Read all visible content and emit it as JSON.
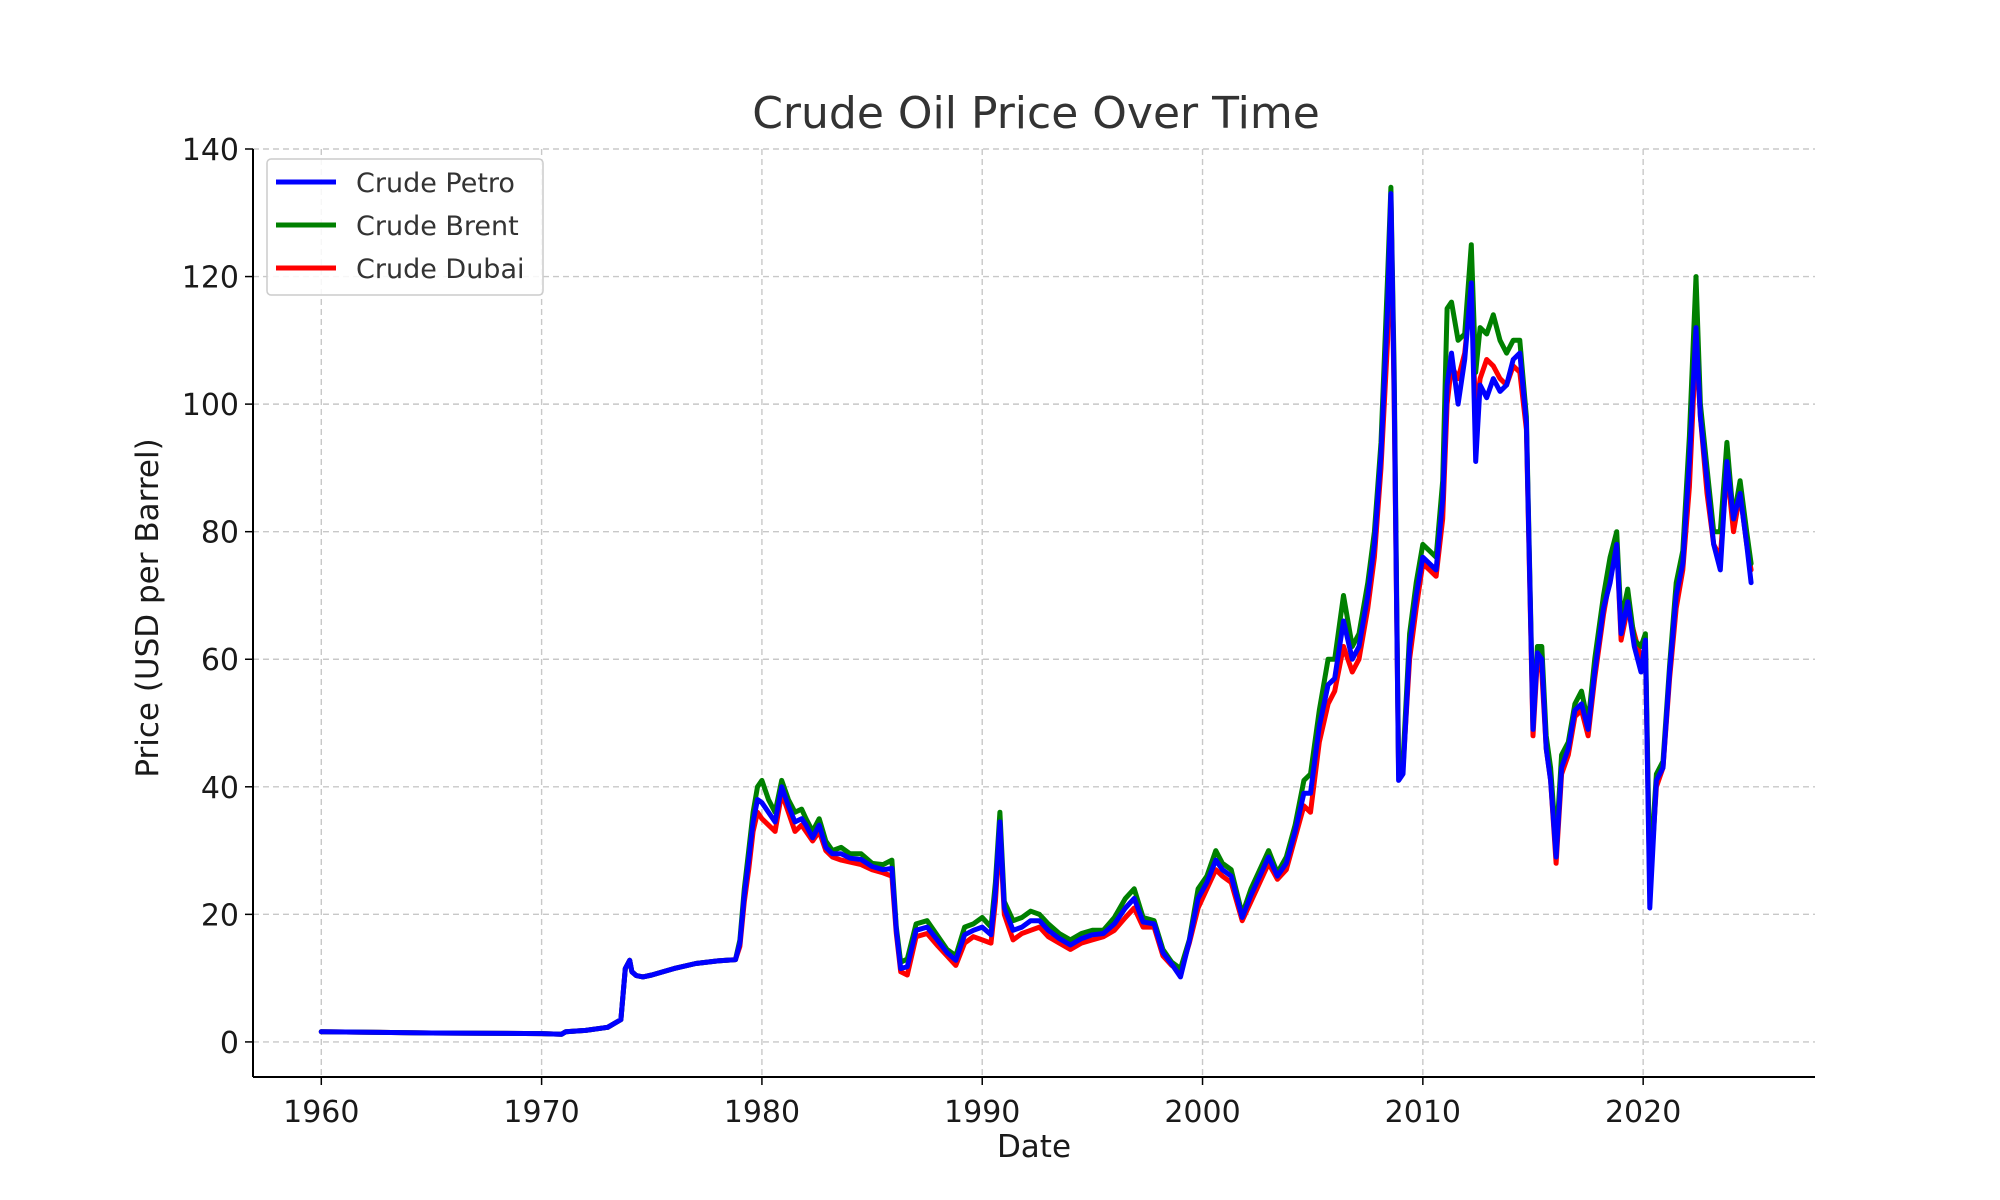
{
  "chart_data": {
    "type": "line",
    "title": "Crude Oil Price Over Time",
    "xlabel": "Date",
    "ylabel": "Price (USD per Barrel)",
    "xlim": [
      1956.9,
      2027.8
    ],
    "ylim": [
      -5.5,
      140
    ],
    "x_ticks": [
      1960,
      1970,
      1980,
      1990,
      2000,
      2010,
      2020
    ],
    "y_ticks": [
      0,
      20,
      40,
      60,
      80,
      100,
      120,
      140
    ],
    "grid": true,
    "legend_position": "top-left",
    "series": [
      {
        "name": "Crude Dubai",
        "color": "#ff0000",
        "x": [
          1960.0,
          1965.0,
          1970.0,
          1970.9,
          1971.1,
          1972.0,
          1973.0,
          1973.6,
          1973.8,
          1974.0,
          1974.1,
          1974.3,
          1974.6,
          1975.0,
          1976.0,
          1977.0,
          1978.0,
          1978.8,
          1979.0,
          1979.2,
          1979.4,
          1979.6,
          1979.8,
          1980.0,
          1980.3,
          1980.6,
          1980.9,
          1981.2,
          1981.5,
          1981.8,
          1982.0,
          1982.3,
          1982.6,
          1982.9,
          1983.2,
          1983.6,
          1984.0,
          1984.5,
          1985.0,
          1985.5,
          1985.9,
          1986.1,
          1986.3,
          1986.6,
          1987.0,
          1987.5,
          1988.0,
          1988.4,
          1988.8,
          1989.2,
          1989.6,
          1990.0,
          1990.4,
          1990.6,
          1990.8,
          1991.0,
          1991.4,
          1991.8,
          1992.2,
          1992.6,
          1993.0,
          1993.5,
          1994.0,
          1994.5,
          1995.0,
          1995.5,
          1996.0,
          1996.5,
          1996.9,
          1997.3,
          1997.8,
          1998.2,
          1998.6,
          1999.0,
          1999.4,
          1999.8,
          2000.2,
          2000.6,
          2000.9,
          2001.3,
          2001.8,
          2002.2,
          2002.6,
          2003.0,
          2003.4,
          2003.8,
          2004.2,
          2004.6,
          2004.9,
          2005.3,
          2005.7,
          2006.0,
          2006.4,
          2006.8,
          2007.1,
          2007.5,
          2007.8,
          2008.1,
          2008.4,
          2008.55,
          2008.7,
          2008.9,
          2009.1,
          2009.4,
          2009.7,
          2010.0,
          2010.3,
          2010.6,
          2010.9,
          2011.1,
          2011.3,
          2011.6,
          2011.9,
          2012.2,
          2012.4,
          2012.6,
          2012.9,
          2013.2,
          2013.5,
          2013.8,
          2014.1,
          2014.4,
          2014.7,
          2015.0,
          2015.2,
          2015.4,
          2015.6,
          2015.8,
          2016.05,
          2016.3,
          2016.6,
          2016.9,
          2017.2,
          2017.5,
          2017.8,
          2018.2,
          2018.5,
          2018.8,
          2019.0,
          2019.3,
          2019.6,
          2019.9,
          2020.1,
          2020.3,
          2020.6,
          2020.9,
          2021.2,
          2021.5,
          2021.8,
          2022.1,
          2022.4,
          2022.6,
          2022.9,
          2023.2,
          2023.5,
          2023.8,
          2024.1,
          2024.4,
          2024.7,
          2024.9
        ],
        "y": [
          1.6,
          1.4,
          1.3,
          1.2,
          1.6,
          1.8,
          2.3,
          3.5,
          11.5,
          12.8,
          11.0,
          10.4,
          10.2,
          10.5,
          11.5,
          12.3,
          12.7,
          12.9,
          15.0,
          22.0,
          27.0,
          33.0,
          36.0,
          35.0,
          34.0,
          33.0,
          39.0,
          36.0,
          33.0,
          34.0,
          33.0,
          31.5,
          33.0,
          30.0,
          29.0,
          28.5,
          28.2,
          27.8,
          27.0,
          26.5,
          26.0,
          17.0,
          11.0,
          10.5,
          16.5,
          17.0,
          15.0,
          13.5,
          12.0,
          15.5,
          16.5,
          16.0,
          15.5,
          22.0,
          33.0,
          20.0,
          16.0,
          17.0,
          17.5,
          18.0,
          16.5,
          15.5,
          14.5,
          15.5,
          16.0,
          16.5,
          17.5,
          19.5,
          21.0,
          18.0,
          18.0,
          13.5,
          12.0,
          11.0,
          15.5,
          21.0,
          24.0,
          27.0,
          26.0,
          25.0,
          19.0,
          22.0,
          25.0,
          28.0,
          25.5,
          27.0,
          32.0,
          37.0,
          36.0,
          47.0,
          53.0,
          55.0,
          62.0,
          58.0,
          60.0,
          68.0,
          76.0,
          90.0,
          110.0,
          132.0,
          100.0,
          42.0,
          43.0,
          60.0,
          68.0,
          75.0,
          74.0,
          73.0,
          82.0,
          100.0,
          106.0,
          104.0,
          108.0,
          118.0,
          98.0,
          104.0,
          107.0,
          106.0,
          104.0,
          103.0,
          106.0,
          105.0,
          96.0,
          48.0,
          60.0,
          58.0,
          46.0,
          41.0,
          28.0,
          42.0,
          45.0,
          51.0,
          52.0,
          48.0,
          57.0,
          67.0,
          73.0,
          78.0,
          63.0,
          68.0,
          64.0,
          60.0,
          62.0,
          24.0,
          40.0,
          43.0,
          57.0,
          68.0,
          74.0,
          87.0,
          110.0,
          98.0,
          86.0,
          78.0,
          76.0,
          90.0,
          80.0,
          86.0,
          78.0,
          74.0
        ]
      },
      {
        "name": "Crude Brent",
        "color": "#008000",
        "x": [
          1960.0,
          1965.0,
          1970.0,
          1970.9,
          1971.1,
          1972.0,
          1973.0,
          1973.6,
          1973.8,
          1974.0,
          1974.1,
          1974.3,
          1974.6,
          1975.0,
          1976.0,
          1977.0,
          1978.0,
          1978.8,
          1979.0,
          1979.2,
          1979.4,
          1979.6,
          1979.8,
          1980.0,
          1980.3,
          1980.6,
          1980.9,
          1981.2,
          1981.5,
          1981.8,
          1982.0,
          1982.3,
          1982.6,
          1982.9,
          1983.2,
          1983.6,
          1984.0,
          1984.5,
          1985.0,
          1985.5,
          1985.9,
          1986.1,
          1986.3,
          1986.6,
          1987.0,
          1987.5,
          1988.0,
          1988.4,
          1988.8,
          1989.2,
          1989.6,
          1990.0,
          1990.4,
          1990.6,
          1990.8,
          1991.0,
          1991.4,
          1991.8,
          1992.2,
          1992.6,
          1993.0,
          1993.5,
          1994.0,
          1994.5,
          1995.0,
          1995.5,
          1996.0,
          1996.5,
          1996.9,
          1997.3,
          1997.8,
          1998.2,
          1998.6,
          1999.0,
          1999.4,
          1999.8,
          2000.2,
          2000.6,
          2000.9,
          2001.3,
          2001.8,
          2002.2,
          2002.6,
          2003.0,
          2003.4,
          2003.8,
          2004.2,
          2004.6,
          2004.9,
          2005.3,
          2005.7,
          2006.0,
          2006.4,
          2006.8,
          2007.1,
          2007.5,
          2007.8,
          2008.1,
          2008.4,
          2008.55,
          2008.7,
          2008.9,
          2009.1,
          2009.4,
          2009.7,
          2010.0,
          2010.3,
          2010.6,
          2010.9,
          2011.1,
          2011.3,
          2011.6,
          2011.9,
          2012.2,
          2012.4,
          2012.6,
          2012.9,
          2013.2,
          2013.5,
          2013.8,
          2014.1,
          2014.4,
          2014.7,
          2015.0,
          2015.2,
          2015.4,
          2015.6,
          2015.8,
          2016.05,
          2016.3,
          2016.6,
          2016.9,
          2017.2,
          2017.5,
          2017.8,
          2018.2,
          2018.5,
          2018.8,
          2019.0,
          2019.3,
          2019.6,
          2019.9,
          2020.1,
          2020.3,
          2020.6,
          2020.9,
          2021.2,
          2021.5,
          2021.8,
          2022.1,
          2022.4,
          2022.6,
          2022.9,
          2023.2,
          2023.5,
          2023.8,
          2024.1,
          2024.4,
          2024.7,
          2024.9
        ],
        "y": [
          1.6,
          1.4,
          1.3,
          1.2,
          1.6,
          1.8,
          2.3,
          3.5,
          11.5,
          12.8,
          11.0,
          10.4,
          10.2,
          10.5,
          11.5,
          12.3,
          12.7,
          12.9,
          16.0,
          24.0,
          30.0,
          36.0,
          40.0,
          41.0,
          38.0,
          36.0,
          41.0,
          38.0,
          36.0,
          36.5,
          35.0,
          33.0,
          35.0,
          31.5,
          30.0,
          30.5,
          29.5,
          29.5,
          28.0,
          27.8,
          28.5,
          18.0,
          12.5,
          13.0,
          18.5,
          19.0,
          16.5,
          14.5,
          13.5,
          18.0,
          18.5,
          19.5,
          18.0,
          25.0,
          36.0,
          22.0,
          19.0,
          19.5,
          20.5,
          20.0,
          18.5,
          17.0,
          16.0,
          17.0,
          17.5,
          17.5,
          19.5,
          22.5,
          24.0,
          19.5,
          19.0,
          14.5,
          12.5,
          11.5,
          16.0,
          24.0,
          26.0,
          30.0,
          28.0,
          27.0,
          20.0,
          24.0,
          27.0,
          30.0,
          26.5,
          29.0,
          34.0,
          41.0,
          42.0,
          52.0,
          60.0,
          60.0,
          70.0,
          62.0,
          64.0,
          72.0,
          80.0,
          94.0,
          120.0,
          134.0,
          105.0,
          43.0,
          44.0,
          64.0,
          72.0,
          78.0,
          77.0,
          76.0,
          88.0,
          115.0,
          116.0,
          110.0,
          111.0,
          125.0,
          105.0,
          112.0,
          111.0,
          114.0,
          110.0,
          108.0,
          110.0,
          110.0,
          98.0,
          50.0,
          62.0,
          62.0,
          48.0,
          43.0,
          31.0,
          45.0,
          47.0,
          53.0,
          55.0,
          50.0,
          60.0,
          70.0,
          76.0,
          80.0,
          66.0,
          71.0,
          63.0,
          62.0,
          64.0,
          26.0,
          42.0,
          44.0,
          59.0,
          72.0,
          77.0,
          95.0,
          120.0,
          100.0,
          90.0,
          80.0,
          80.0,
          94.0,
          82.0,
          88.0,
          80.0,
          75.0
        ]
      },
      {
        "name": "Crude Petro",
        "color": "#0000ff",
        "x": [
          1960.0,
          1965.0,
          1970.0,
          1970.9,
          1971.1,
          1972.0,
          1973.0,
          1973.6,
          1973.8,
          1974.0,
          1974.1,
          1974.3,
          1974.6,
          1975.0,
          1976.0,
          1977.0,
          1978.0,
          1978.8,
          1979.0,
          1979.2,
          1979.4,
          1979.6,
          1979.8,
          1980.0,
          1980.3,
          1980.6,
          1980.9,
          1981.2,
          1981.5,
          1981.8,
          1982.0,
          1982.3,
          1982.6,
          1982.9,
          1983.2,
          1983.6,
          1984.0,
          1984.5,
          1985.0,
          1985.5,
          1985.9,
          1986.1,
          1986.3,
          1986.6,
          1987.0,
          1987.5,
          1988.0,
          1988.4,
          1988.8,
          1989.2,
          1989.6,
          1990.0,
          1990.4,
          1990.6,
          1990.8,
          1991.0,
          1991.4,
          1991.8,
          1992.2,
          1992.6,
          1993.0,
          1993.5,
          1994.0,
          1994.5,
          1995.0,
          1995.5,
          1996.0,
          1996.5,
          1996.9,
          1997.3,
          1997.8,
          1998.2,
          1998.6,
          1999.0,
          1999.4,
          1999.8,
          2000.2,
          2000.6,
          2000.9,
          2001.3,
          2001.8,
          2002.2,
          2002.6,
          2003.0,
          2003.4,
          2003.8,
          2004.2,
          2004.6,
          2004.9,
          2005.3,
          2005.7,
          2006.0,
          2006.4,
          2006.8,
          2007.1,
          2007.5,
          2007.8,
          2008.1,
          2008.4,
          2008.55,
          2008.7,
          2008.9,
          2009.1,
          2009.4,
          2009.7,
          2010.0,
          2010.3,
          2010.6,
          2010.9,
          2011.1,
          2011.3,
          2011.6,
          2011.9,
          2012.2,
          2012.4,
          2012.6,
          2012.9,
          2013.2,
          2013.5,
          2013.8,
          2014.1,
          2014.4,
          2014.7,
          2015.0,
          2015.2,
          2015.4,
          2015.6,
          2015.8,
          2016.05,
          2016.3,
          2016.6,
          2016.9,
          2017.2,
          2017.5,
          2017.8,
          2018.2,
          2018.5,
          2018.8,
          2019.0,
          2019.3,
          2019.6,
          2019.9,
          2020.1,
          2020.3,
          2020.6,
          2020.9,
          2021.2,
          2021.5,
          2021.8,
          2022.1,
          2022.4,
          2022.6,
          2022.9,
          2023.2,
          2023.5,
          2023.8,
          2024.1,
          2024.4,
          2024.7,
          2024.9
        ],
        "y": [
          1.6,
          1.4,
          1.3,
          1.2,
          1.6,
          1.8,
          2.3,
          3.5,
          11.5,
          12.8,
          11.0,
          10.4,
          10.2,
          10.5,
          11.5,
          12.3,
          12.7,
          12.9,
          15.5,
          23.0,
          28.5,
          34.5,
          38.0,
          37.5,
          36.0,
          34.5,
          40.0,
          37.0,
          34.5,
          35.0,
          34.0,
          32.0,
          34.0,
          30.5,
          29.5,
          29.5,
          28.8,
          28.6,
          27.5,
          27.0,
          27.2,
          17.5,
          11.5,
          11.8,
          17.5,
          18.0,
          15.8,
          14.0,
          12.8,
          16.8,
          17.5,
          18.0,
          16.8,
          23.5,
          34.5,
          21.0,
          17.5,
          18.0,
          19.0,
          19.0,
          17.5,
          16.2,
          15.2,
          16.2,
          16.8,
          17.0,
          18.5,
          21.0,
          22.5,
          18.8,
          18.5,
          14.0,
          12.2,
          10.2,
          15.8,
          22.5,
          25.0,
          28.5,
          27.0,
          26.0,
          19.5,
          23.0,
          26.0,
          29.0,
          26.0,
          28.0,
          33.0,
          39.0,
          39.0,
          49.5,
          56.0,
          57.0,
          66.0,
          60.0,
          62.0,
          70.0,
          78.0,
          92.0,
          115.0,
          133.0,
          102.0,
          41.0,
          42.0,
          62.0,
          70.0,
          76.0,
          75.0,
          74.0,
          85.0,
          103.0,
          108.0,
          100.0,
          107.0,
          119.0,
          91.0,
          103.0,
          101.0,
          104.0,
          102.0,
          103.0,
          107.0,
          108.0,
          97.0,
          49.0,
          61.0,
          60.0,
          46.0,
          41.0,
          29.0,
          43.0,
          46.0,
          52.0,
          53.0,
          49.0,
          58.0,
          68.0,
          72.0,
          78.0,
          64.0,
          69.0,
          62.0,
          58.0,
          63.0,
          21.0,
          41.0,
          43.0,
          58.0,
          70.0,
          75.0,
          91.0,
          112.0,
          98.0,
          88.0,
          78.0,
          74.0,
          91.0,
          82.0,
          86.0,
          78.0,
          72.0
        ]
      }
    ],
    "legend": [
      {
        "name": "Crude Petro",
        "color": "#0000ff"
      },
      {
        "name": "Crude Brent",
        "color": "#008000"
      },
      {
        "name": "Crude Dubai",
        "color": "#ff0000"
      }
    ]
  }
}
